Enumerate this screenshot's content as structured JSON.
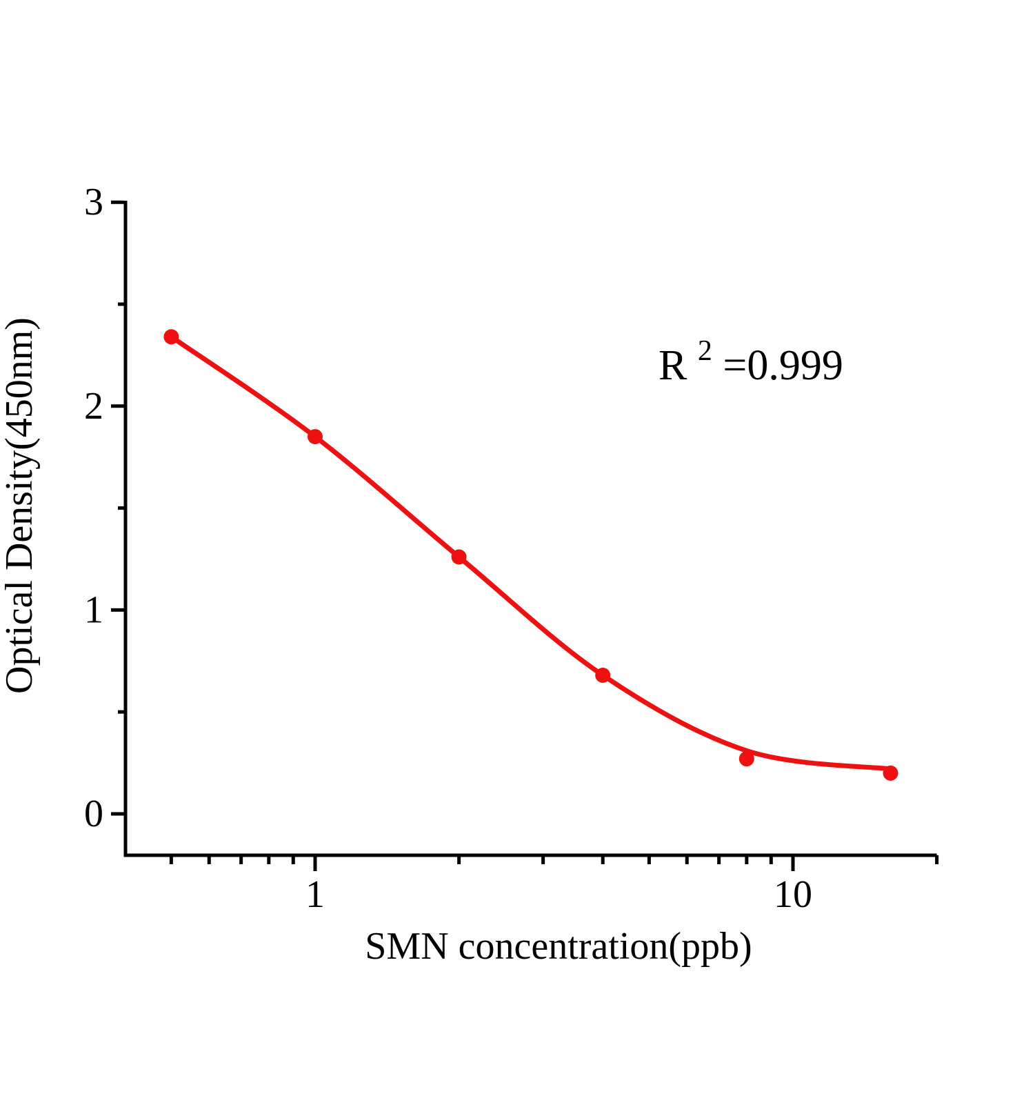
{
  "figure": {
    "background": "#ffffff",
    "axis_color": "#000000",
    "series_color": "#ee1111"
  },
  "annotation": {
    "prefix": "R",
    "superscript": "2",
    "suffix": "=0.999"
  },
  "x_axis": {
    "label": "SMN concentration(ppb)",
    "scale": "log10",
    "range": [
      0.4,
      20
    ],
    "major_ticks": [
      {
        "value": 1,
        "label": "1"
      },
      {
        "value": 10,
        "label": "10"
      }
    ],
    "minor_ticks": [
      0.5,
      0.6,
      0.7,
      0.8,
      0.9,
      2,
      3,
      4,
      5,
      6,
      7,
      8,
      9,
      20
    ]
  },
  "y_axis": {
    "label": "Optical Density(450nm)",
    "scale": "linear",
    "range": [
      -0.2,
      3
    ],
    "major_ticks": [
      {
        "value": 0,
        "label": "0"
      },
      {
        "value": 1,
        "label": "1"
      },
      {
        "value": 2,
        "label": "2"
      },
      {
        "value": 3,
        "label": "3"
      }
    ],
    "minor_ticks": [
      0.5,
      1.5,
      2.5
    ]
  },
  "chart_data": {
    "type": "scatter",
    "curve": "sigmoidal (4PL) standard-curve fit through points",
    "x": [
      0.5,
      1,
      2,
      4,
      8,
      16
    ],
    "y": [
      2.34,
      1.85,
      1.26,
      0.68,
      0.27,
      0.2
    ],
    "fit_curve_y": [
      2.34,
      1.85,
      1.26,
      0.68,
      0.31,
      0.22
    ],
    "title": "",
    "xlabel": "SMN concentration(ppb)",
    "ylabel": "Optical Density(450nm)",
    "x_scale": "log10",
    "xlim": [
      0.4,
      20
    ],
    "ylim": [
      -0.2,
      3
    ],
    "r_squared": 0.999,
    "annotation_text": "R²=0.999",
    "grid": false,
    "legend": "none",
    "marker": {
      "shape": "circle",
      "radius": 11,
      "color": "#ee1111"
    },
    "line": {
      "width": 7,
      "color": "#ee1111"
    }
  }
}
